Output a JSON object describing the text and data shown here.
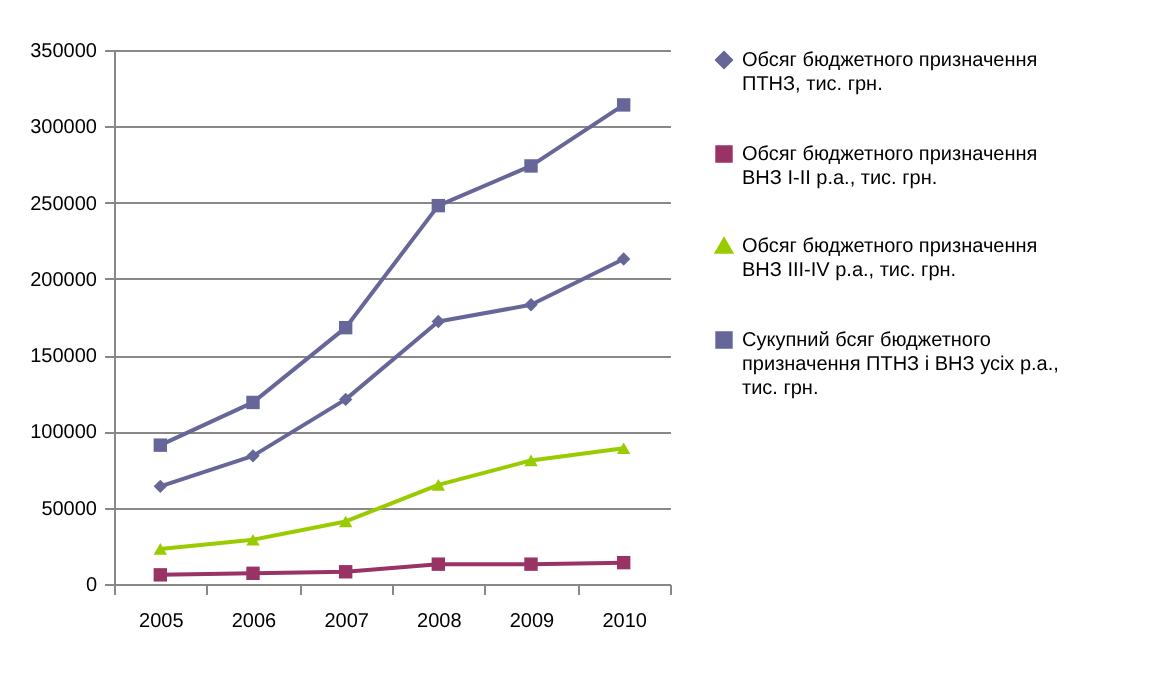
{
  "chart_data": {
    "type": "line",
    "categories": [
      "2005",
      "2006",
      "2007",
      "2008",
      "2009",
      "2010"
    ],
    "ylim": [
      0,
      350000
    ],
    "yticks": [
      0,
      50000,
      100000,
      150000,
      200000,
      250000,
      300000,
      350000
    ],
    "grid": "y",
    "legend": "right",
    "series": [
      {
        "name": "Обсяг бюджетного призначення ПТНЗ, тис. грн.",
        "color": "#666699",
        "marker": "diamond",
        "values": [
          64000,
          84000,
          121000,
          172000,
          183000,
          213000
        ]
      },
      {
        "name": "Обсяг бюджетного призначення ВНЗ І-ІІ р.а., тис. грн.",
        "color": "#993366",
        "marker": "square",
        "values": [
          6000,
          7000,
          8000,
          13000,
          13000,
          14000
        ]
      },
      {
        "name": "Обсяг бюджетного призначення ВНЗ ІІІ-ІV р.а., тис. грн.",
        "color": "#99cc00",
        "marker": "triangle",
        "values": [
          23000,
          29000,
          41000,
          65000,
          81000,
          89000
        ]
      },
      {
        "name": "Сукупний бсяг бюджетного призначення ПТНЗ і ВНЗ усіх р.а., тис. грн.",
        "color": "#666699",
        "marker": "square",
        "values": [
          91000,
          119000,
          168000,
          248000,
          274000,
          314000
        ]
      }
    ]
  }
}
